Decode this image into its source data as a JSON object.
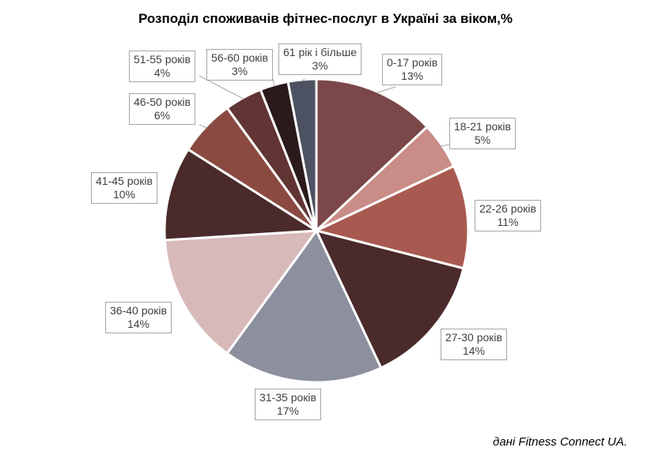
{
  "chart_data": {
    "type": "pie",
    "title": "Розподіл споживачів фітнес-послуг в Україні за віком,%",
    "categories": [
      "0-17 років",
      "18-21 років",
      "22-26 років",
      "27-30 років",
      "31-35 років",
      "36-40 років",
      "41-45 років",
      "46-50 років",
      "51-55 років",
      "56-60 років",
      "61 рік і більше"
    ],
    "values": [
      13,
      5,
      11,
      14,
      17,
      14,
      10,
      6,
      4,
      3,
      3
    ],
    "value_labels": [
      "13%",
      "5%",
      "11%",
      "14%",
      "17%",
      "14%",
      "10%",
      "6%",
      "4%",
      "3%",
      "3%"
    ],
    "colors": [
      "#7b4748",
      "#c98c86",
      "#a85a50",
      "#4a2a2b",
      "#8b8f9e",
      "#d8b9ba",
      "#4a2a2b",
      "#8a4a42",
      "#603533",
      "#2a1a1b",
      "#4d5262"
    ],
    "start_angle_deg": 0,
    "direction": "clockwise"
  },
  "source_note": "дані Fitness Connect UA."
}
